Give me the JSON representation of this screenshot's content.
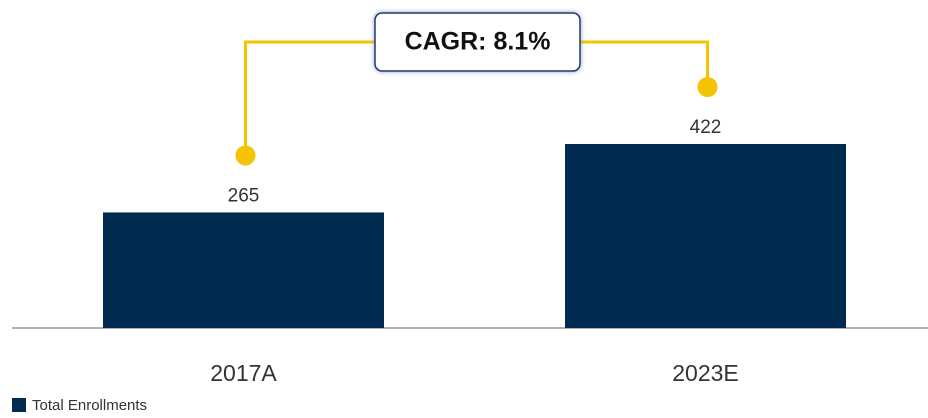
{
  "chart_data": {
    "type": "bar",
    "categories": [
      "2017A",
      "2023E"
    ],
    "series": [
      {
        "name": "Total Enrollments",
        "color": "#002a50",
        "values": [
          265,
          422
        ]
      }
    ],
    "annotation": "CAGR: 8.1%",
    "annotation_color": "#f5c400",
    "legend": "bottom-left"
  }
}
